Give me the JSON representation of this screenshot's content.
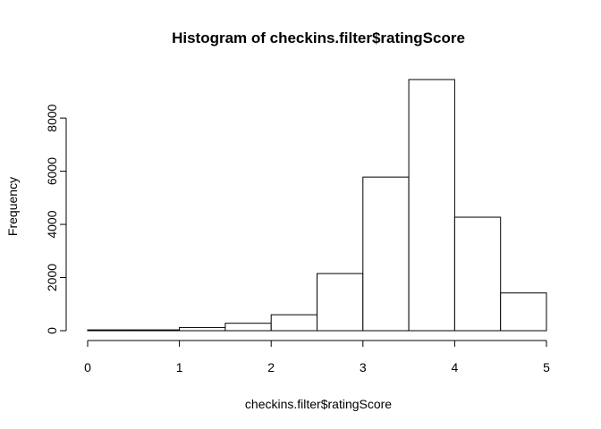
{
  "chart_data": {
    "type": "bar",
    "title": "Histogram of checkins.filter$ratingScore",
    "xlabel": "checkins.filter$ratingScore",
    "ylabel": "Frequency",
    "bins": [
      {
        "x0": 0.0,
        "x1": 0.5,
        "value": 30
      },
      {
        "x0": 0.5,
        "x1": 1.0,
        "value": 30
      },
      {
        "x0": 1.0,
        "x1": 1.5,
        "value": 120
      },
      {
        "x0": 1.5,
        "x1": 2.0,
        "value": 280
      },
      {
        "x0": 2.0,
        "x1": 2.5,
        "value": 600
      },
      {
        "x0": 2.5,
        "x1": 3.0,
        "value": 2150
      },
      {
        "x0": 3.0,
        "x1": 3.5,
        "value": 5780
      },
      {
        "x0": 3.5,
        "x1": 4.0,
        "value": 9450
      },
      {
        "x0": 4.0,
        "x1": 4.5,
        "value": 4270
      },
      {
        "x0": 4.5,
        "x1": 5.0,
        "value": 1420
      }
    ],
    "xlim": [
      0,
      5
    ],
    "ylim": [
      0,
      9450
    ],
    "xticks": [
      "0",
      "1",
      "2",
      "3",
      "4",
      "5"
    ],
    "yticks": [
      "0",
      "2000",
      "4000",
      "6000",
      "8000"
    ],
    "grid": false
  }
}
